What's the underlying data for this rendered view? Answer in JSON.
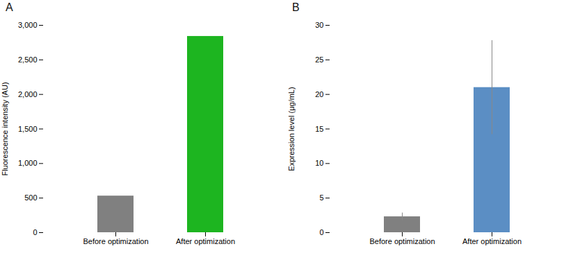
{
  "chart_data": [
    {
      "type": "bar",
      "title": "A",
      "categories": [
        "Before optimization",
        "After optimization"
      ],
      "values": [
        530,
        2840
      ],
      "colors": [
        "#808080",
        "#1db520"
      ],
      "ylabel": "Fluorescence intensity (AU)",
      "ylim": [
        0,
        3000
      ],
      "yticks": [
        0,
        500,
        1000,
        1500,
        2000,
        2500,
        3000
      ],
      "grid": false
    },
    {
      "type": "bar",
      "title": "B",
      "categories": [
        "Before optimization",
        "After optimization"
      ],
      "values": [
        2.3,
        21.0
      ],
      "errors": [
        0.55,
        6.8
      ],
      "colors": [
        "#808080",
        "#5b8ec4"
      ],
      "ylabel": "Expression level (μg/mL)",
      "ylim": [
        0,
        30
      ],
      "yticks": [
        0,
        5,
        10,
        15,
        20,
        25,
        30
      ],
      "grid": false
    }
  ]
}
